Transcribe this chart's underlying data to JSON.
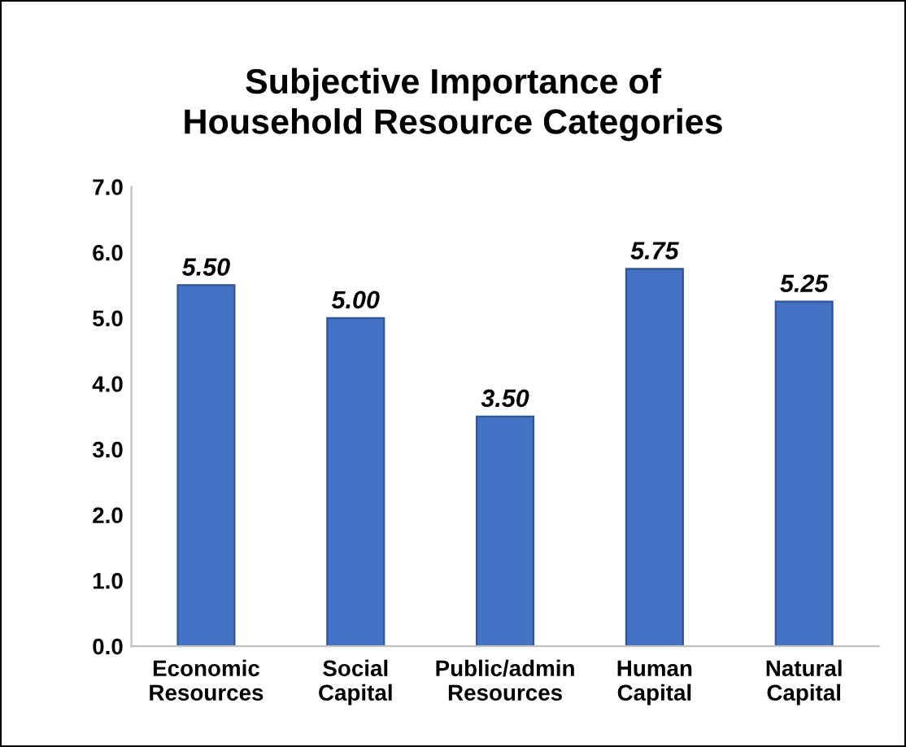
{
  "chart_data": {
    "type": "bar",
    "title": "Subjective Importance of\nHousehold Resource Categories",
    "categories": [
      "Economic\nResources",
      "Social\nCapital",
      "Public/admin\nResources",
      "Human\nCapital",
      "Natural\nCapital"
    ],
    "values": [
      5.5,
      5.0,
      3.5,
      5.75,
      5.25
    ],
    "value_labels": [
      "5.50",
      "5.00",
      "3.50",
      "5.75",
      "5.25"
    ],
    "color": "#4472c4",
    "ylim": [
      0,
      7
    ],
    "yticks": [
      {
        "value": 0,
        "label": "0.0"
      },
      {
        "value": 1,
        "label": "1.0"
      },
      {
        "value": 2,
        "label": "2.0"
      },
      {
        "value": 3,
        "label": "3.0"
      },
      {
        "value": 4,
        "label": "4.0"
      },
      {
        "value": 5,
        "label": "5.0"
      },
      {
        "value": 6,
        "label": "6.0"
      },
      {
        "value": 7,
        "label": "7.0"
      }
    ],
    "grid": false,
    "legend": false
  }
}
